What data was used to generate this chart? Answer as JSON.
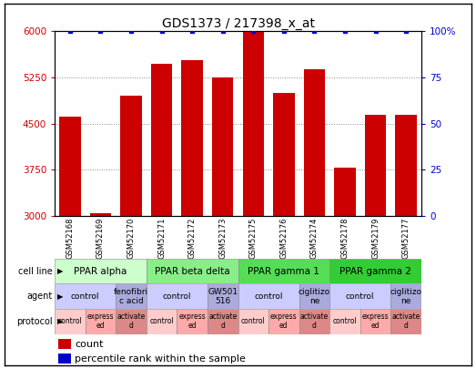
{
  "title": "GDS1373 / 217398_x_at",
  "samples": [
    "GSM52168",
    "GSM52169",
    "GSM52170",
    "GSM52171",
    "GSM52172",
    "GSM52173",
    "GSM52175",
    "GSM52176",
    "GSM52174",
    "GSM52178",
    "GSM52179",
    "GSM52177"
  ],
  "count_values": [
    4620,
    3050,
    4950,
    5480,
    5530,
    5247,
    6000,
    5000,
    5380,
    3780,
    4650,
    4650
  ],
  "percentile_values": [
    100,
    100,
    100,
    100,
    100,
    100,
    100,
    100,
    100,
    100,
    100,
    100
  ],
  "ylim_left": [
    3000,
    6000
  ],
  "ylim_right": [
    0,
    100
  ],
  "yticks_left": [
    3000,
    3750,
    4500,
    5250,
    6000
  ],
  "yticks_right": [
    0,
    25,
    50,
    75,
    100
  ],
  "bar_color": "#cc0000",
  "percentile_color": "#0000cc",
  "background_color": "#ffffff",
  "cell_lines": [
    {
      "label": "PPAR alpha",
      "start": 0,
      "end": 3,
      "color": "#ccffcc"
    },
    {
      "label": "PPAR beta delta",
      "start": 3,
      "end": 6,
      "color": "#88ee88"
    },
    {
      "label": "PPAR gamma 1",
      "start": 6,
      "end": 9,
      "color": "#55dd55"
    },
    {
      "label": "PPAR gamma 2",
      "start": 9,
      "end": 12,
      "color": "#33cc33"
    }
  ],
  "agents": [
    {
      "label": "control",
      "start": 0,
      "end": 2,
      "color": "#ccccff"
    },
    {
      "label": "fenofibri\nc acid",
      "start": 2,
      "end": 3,
      "color": "#aaaadd"
    },
    {
      "label": "control",
      "start": 3,
      "end": 5,
      "color": "#ccccff"
    },
    {
      "label": "GW501\n516",
      "start": 5,
      "end": 6,
      "color": "#aaaadd"
    },
    {
      "label": "control",
      "start": 6,
      "end": 8,
      "color": "#ccccff"
    },
    {
      "label": "ciglitizo\nne",
      "start": 8,
      "end": 9,
      "color": "#aaaadd"
    },
    {
      "label": "control",
      "start": 9,
      "end": 11,
      "color": "#ccccff"
    },
    {
      "label": "ciglitizo\nne",
      "start": 11,
      "end": 12,
      "color": "#aaaadd"
    }
  ],
  "protocols": [
    {
      "label": "control",
      "start": 0,
      "end": 1,
      "color": "#ffcccc"
    },
    {
      "label": "express\ned",
      "start": 1,
      "end": 2,
      "color": "#ffaaaa"
    },
    {
      "label": "activate\nd",
      "start": 2,
      "end": 3,
      "color": "#dd8888"
    },
    {
      "label": "control",
      "start": 3,
      "end": 4,
      "color": "#ffcccc"
    },
    {
      "label": "express\ned",
      "start": 4,
      "end": 5,
      "color": "#ffaaaa"
    },
    {
      "label": "activate\nd",
      "start": 5,
      "end": 6,
      "color": "#dd8888"
    },
    {
      "label": "control",
      "start": 6,
      "end": 7,
      "color": "#ffcccc"
    },
    {
      "label": "express\ned",
      "start": 7,
      "end": 8,
      "color": "#ffaaaa"
    },
    {
      "label": "activate\nd",
      "start": 8,
      "end": 9,
      "color": "#dd8888"
    },
    {
      "label": "control",
      "start": 9,
      "end": 10,
      "color": "#ffcccc"
    },
    {
      "label": "express\ned",
      "start": 10,
      "end": 11,
      "color": "#ffaaaa"
    },
    {
      "label": "activate\nd",
      "start": 11,
      "end": 12,
      "color": "#dd8888"
    }
  ],
  "row_labels": [
    "cell line",
    "agent",
    "protocol"
  ],
  "title_fontsize": 10,
  "tick_fontsize": 7.5,
  "sample_fontsize": 6,
  "table_fontsize_large": 7.5,
  "table_fontsize_med": 6.5,
  "table_fontsize_small": 5.5
}
